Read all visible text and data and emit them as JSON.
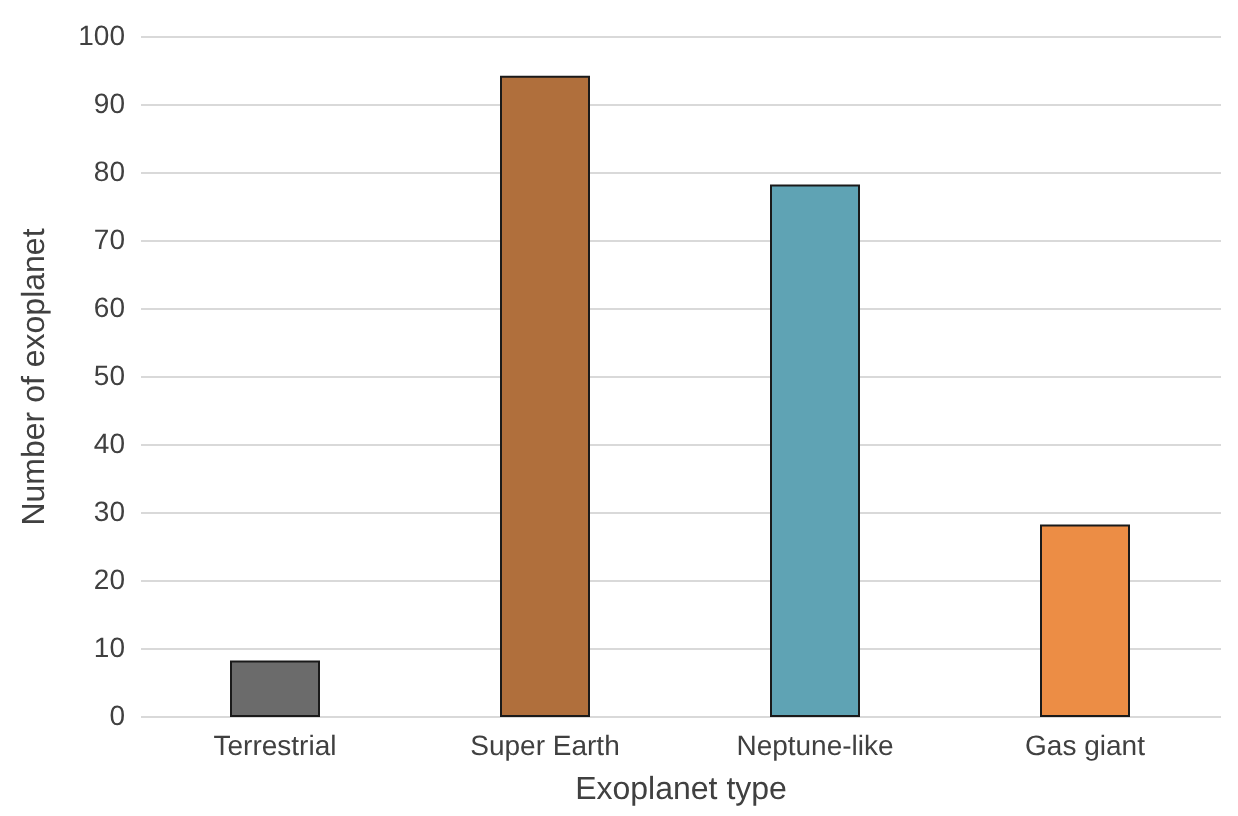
{
  "chart_data": {
    "type": "bar",
    "xlabel": "Exoplanet type",
    "ylabel": "Number of exoplanet",
    "categories": [
      "Terrestrial",
      "Super Earth",
      "Neptune-like",
      "Gas giant"
    ],
    "values": [
      8,
      94,
      78,
      28
    ],
    "colors": [
      "#6b6b6b",
      "#b06f3c",
      "#5fa3b4",
      "#ec8d45"
    ],
    "ylim": [
      0,
      100
    ],
    "yticks": [
      0,
      10,
      20,
      30,
      40,
      50,
      60,
      70,
      80,
      90,
      100
    ],
    "grid": "y"
  }
}
